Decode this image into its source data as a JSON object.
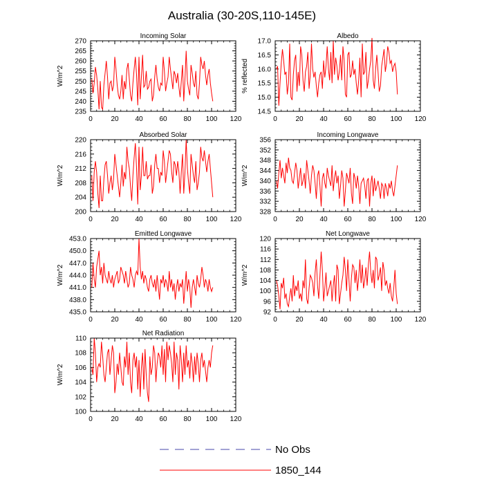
{
  "title": "Australia (30-20S,110-145E)",
  "legend": [
    {
      "label": "No Obs",
      "color": "#4444aa",
      "dashed": true
    },
    {
      "label": "1850_144",
      "color": "#ff0000",
      "dashed": false
    }
  ],
  "chart_data": [
    {
      "type": "line",
      "title": "Incoming Solar",
      "ylabel": "W/m^2",
      "xlim": [
        0,
        120
      ],
      "xticks": [
        0,
        20,
        40,
        60,
        80,
        100,
        120
      ],
      "ylim": [
        235,
        270
      ],
      "yticks": [
        "235",
        "240",
        "245",
        "250",
        "255",
        "260",
        "265",
        "270"
      ],
      "series": [
        {
          "color": "#ff0000",
          "x_start": 1,
          "values": [
            251,
            244,
            249,
            257,
            253,
            246,
            236,
            250,
            237,
            236,
            248,
            254,
            260,
            252,
            241,
            249,
            250,
            245,
            248,
            262,
            256,
            248,
            243,
            241,
            245,
            253,
            241,
            250,
            246,
            256,
            259,
            251,
            243,
            240,
            249,
            256,
            262,
            253,
            238,
            262,
            241,
            252,
            263,
            247,
            248,
            255,
            246,
            247,
            250,
            251,
            240,
            243,
            252,
            258,
            251,
            247,
            245,
            249,
            248,
            262,
            255,
            245,
            249,
            252,
            262,
            256,
            251,
            246,
            255,
            253,
            249,
            254,
            247,
            242,
            250,
            258,
            240,
            251,
            265,
            250,
            246,
            243,
            258,
            254,
            249,
            247,
            255,
            243,
            241,
            249,
            262,
            258,
            256,
            260,
            253,
            248,
            253,
            256,
            249,
            244,
            240
          ]
        }
      ]
    },
    {
      "type": "line",
      "title": "Albedo",
      "ylabel": "% reflected",
      "xlim": [
        0,
        120
      ],
      "xticks": [
        0,
        20,
        40,
        60,
        80,
        100,
        120
      ],
      "ylim": [
        14.5,
        17.0
      ],
      "yticks": [
        "14.5",
        "15.0",
        "15.5",
        "16.0",
        "16.5",
        "17.0"
      ],
      "series": [
        {
          "color": "#ff0000",
          "x_start": 1,
          "values": [
            16.0,
            16.1,
            14.7,
            15.5,
            16.2,
            16.7,
            16.3,
            15.8,
            15.9,
            15.1,
            15.5,
            16.9,
            15.0,
            14.9,
            15.8,
            16.3,
            16.5,
            15.2,
            15.9,
            15.4,
            16.8,
            16.5,
            15.6,
            15.2,
            15.9,
            16.1,
            16.6,
            15.3,
            15.8,
            16.9,
            16.0,
            15.7,
            15.9,
            15.4,
            15.0,
            15.5,
            15.8,
            15.9,
            15.3,
            16.3,
            15.7,
            16.1,
            16.8,
            16.0,
            15.6,
            16.6,
            15.5,
            17.0,
            15.8,
            16.4,
            16.1,
            15.6,
            15.9,
            16.5,
            15.6,
            16.8,
            16.3,
            15.1,
            15.0,
            16.5,
            16.6,
            15.7,
            15.8,
            16.3,
            15.8,
            16.0,
            15.5,
            15.1,
            15.6,
            16.4,
            15.0,
            16.9,
            15.8,
            15.9,
            16.6,
            15.3,
            15.6,
            16.0,
            16.3,
            17.1,
            15.6,
            15.3,
            16.0,
            16.5,
            15.9,
            15.2,
            15.4,
            16.1,
            16.4,
            16.7,
            15.9,
            16.2,
            16.8,
            16.6,
            16.2,
            16.3,
            15.9,
            16.1,
            16.2,
            15.9,
            15.1
          ]
        }
      ]
    },
    {
      "type": "line",
      "title": "Absorbed Solar",
      "ylabel": "W/m^2",
      "xlim": [
        0,
        120
      ],
      "xticks": [
        0,
        20,
        40,
        60,
        80,
        100,
        120
      ],
      "ylim": [
        200,
        220
      ],
      "yticks": [
        "200",
        "204",
        "208",
        "212",
        "216",
        "220"
      ],
      "series": [
        {
          "color": "#ff0000",
          "x_start": 1,
          "values": [
            210,
            203,
            211,
            214,
            211,
            205,
            201,
            210,
            203,
            203,
            209,
            213,
            214,
            210,
            205,
            208,
            210,
            206,
            209,
            216,
            213,
            210,
            207,
            204,
            208,
            213,
            207,
            211,
            209,
            218,
            214,
            212,
            207,
            203,
            210,
            215,
            219,
            212,
            202,
            218,
            206,
            210,
            218,
            210,
            210,
            214,
            209,
            210,
            210,
            213,
            205,
            207,
            213,
            216,
            212,
            212,
            208,
            211,
            210,
            217,
            214,
            208,
            211,
            214,
            217,
            216,
            211,
            208,
            214,
            213,
            210,
            214,
            211,
            205,
            211,
            216,
            205,
            211,
            220,
            212,
            208,
            205,
            216,
            213,
            210,
            208,
            214,
            206,
            208,
            211,
            218,
            215,
            214,
            217,
            214,
            211,
            214,
            216,
            212,
            208,
            204
          ]
        }
      ]
    },
    {
      "type": "line",
      "title": "Incoming Longwave",
      "ylabel": "W/m^2",
      "xlim": [
        0,
        120
      ],
      "xticks": [
        0,
        20,
        40,
        60,
        80,
        100,
        120
      ],
      "ylim": [
        328,
        356
      ],
      "yticks": [
        "328",
        "332",
        "336",
        "340",
        "344",
        "348",
        "352",
        "356"
      ],
      "series": [
        {
          "color": "#ff0000",
          "x_start": 1,
          "values": [
            340,
            337,
            343,
            348,
            341,
            345,
            342,
            339,
            347,
            343,
            349,
            345,
            344,
            340,
            339,
            343,
            347,
            344,
            337,
            341,
            345,
            338,
            340,
            343,
            337,
            348,
            344,
            340,
            335,
            342,
            346,
            344,
            339,
            333,
            342,
            344,
            338,
            330,
            341,
            343,
            339,
            337,
            345,
            342,
            340,
            338,
            346,
            336,
            341,
            344,
            339,
            342,
            333,
            338,
            344,
            341,
            330,
            336,
            343,
            341,
            339,
            345,
            335,
            331,
            343,
            341,
            337,
            342,
            338,
            331,
            339,
            340,
            341,
            338,
            333,
            340,
            341,
            330,
            339,
            342,
            334,
            341,
            336,
            338,
            340,
            337,
            333,
            339,
            338,
            333,
            339,
            337,
            334,
            339,
            337,
            340,
            336,
            334,
            338,
            342,
            346
          ]
        }
      ]
    },
    {
      "type": "line",
      "title": "Emitted Longwave",
      "ylabel": "W/m^2",
      "xlim": [
        0,
        120
      ],
      "xticks": [
        0,
        20,
        40,
        60,
        80,
        100,
        120
      ],
      "ylim": [
        435.0,
        453.0
      ],
      "yticks": [
        "435.0",
        "438.0",
        "441.0",
        "444.0",
        "447.0",
        "450.0",
        "453.0"
      ],
      "series": [
        {
          "color": "#ff0000",
          "x_start": 1,
          "values": [
            441.0,
            447.0,
            443.0,
            441.0,
            446.0,
            448.0,
            450.0,
            444.0,
            446.0,
            442.0,
            447.0,
            444.0,
            443.0,
            442.0,
            445.0,
            443.0,
            442.0,
            444.0,
            441.0,
            443.0,
            444.0,
            445.0,
            442.0,
            443.0,
            446.0,
            445.0,
            444.0,
            442.0,
            445.0,
            443.0,
            441.0,
            442.0,
            446.0,
            444.0,
            443.0,
            441.0,
            444.0,
            445.0,
            444.0,
            453.0,
            446.0,
            443.0,
            445.0,
            442.0,
            444.0,
            443.0,
            441.0,
            440.0,
            443.0,
            444.0,
            442.0,
            441.0,
            443.0,
            440.0,
            444.0,
            441.0,
            438.0,
            443.0,
            442.0,
            444.0,
            441.0,
            443.0,
            442.0,
            440.0,
            445.0,
            441.0,
            443.0,
            440.0,
            442.0,
            438.0,
            441.0,
            443.0,
            440.0,
            442.0,
            441.0,
            443.0,
            437.0,
            441.0,
            445.0,
            440.0,
            443.0,
            441.0,
            436.0,
            441.0,
            443.0,
            441.0,
            439.0,
            444.0,
            442.0,
            441.0,
            443.0,
            446.0,
            444.0,
            441.0,
            443.0,
            442.0,
            440.0,
            443.0,
            441.0,
            440.0,
            441.0
          ]
        }
      ]
    },
    {
      "type": "line",
      "title": "Net Longwave",
      "ylabel": "W/m^2",
      "xlim": [
        0,
        120
      ],
      "xticks": [
        0,
        20,
        40,
        60,
        80,
        100,
        120
      ],
      "ylim": [
        92,
        120
      ],
      "yticks": [
        "92",
        "96",
        "100",
        "104",
        "108",
        "112",
        "116",
        "120"
      ],
      "series": [
        {
          "color": "#ff0000",
          "x_start": 1,
          "values": [
            104,
            102,
            98,
            93,
            103,
            101,
            105,
            97,
            99,
            95,
            94,
            98,
            101,
            96,
            106,
            98,
            102,
            100,
            104,
            97,
            99,
            96,
            104,
            101,
            112,
            97,
            95,
            101,
            106,
            105,
            103,
            98,
            107,
            112,
            102,
            97,
            106,
            115,
            108,
            96,
            101,
            107,
            98,
            100,
            102,
            104,
            96,
            102,
            106,
            96,
            110,
            108,
            95,
            99,
            103,
            106,
            113,
            108,
            100,
            112,
            104,
            96,
            105,
            110,
            109,
            103,
            108,
            100,
            105,
            112,
            103,
            110,
            101,
            104,
            109,
            102,
            110,
            115,
            107,
            103,
            108,
            101,
            113,
            112,
            104,
            106,
            109,
            100,
            111,
            108,
            102,
            104,
            101,
            99,
            103,
            98,
            96,
            101,
            108,
            99,
            95
          ]
        }
      ]
    },
    {
      "type": "line",
      "title": "Net Radiation",
      "ylabel": "W/m^2",
      "xlim": [
        0,
        120
      ],
      "xticks": [
        0,
        20,
        40,
        60,
        80,
        100,
        120
      ],
      "ylim": [
        100,
        110
      ],
      "yticks": [
        "100",
        "102",
        "104",
        "106",
        "108",
        "110"
      ],
      "series": [
        {
          "color": "#ff0000",
          "x_start": 1,
          "values": [
            106.0,
            105.0,
            110.0,
            108.0,
            104.0,
            106.0,
            106.5,
            106.0,
            109.5,
            107.5,
            105.0,
            104.0,
            106.0,
            108.0,
            108.5,
            105.0,
            107.0,
            109.0,
            108.0,
            102.5,
            104.0,
            106.5,
            105.0,
            108.0,
            106.0,
            104.0,
            103.5,
            107.5,
            106.0,
            109.5,
            105.0,
            108.0,
            104.0,
            102.5,
            107.0,
            108.0,
            106.0,
            107.5,
            103.0,
            107.0,
            102.0,
            106.0,
            108.0,
            103.0,
            108.5,
            105.0,
            102.5,
            101.3,
            107.5,
            105.0,
            106.0,
            109.0,
            108.0,
            104.0,
            106.5,
            108.0,
            107.5,
            106.0,
            109.0,
            105.0,
            108.5,
            104.0,
            109.5,
            107.0,
            109.0,
            108.0,
            106.5,
            104.0,
            109.5,
            105.0,
            108.0,
            107.0,
            103.0,
            109.0,
            107.0,
            104.0,
            108.0,
            105.0,
            109.0,
            106.0,
            107.0,
            104.5,
            108.0,
            106.5,
            104.0,
            107.5,
            105.0,
            108.0,
            106.5,
            104.0,
            107.0,
            108.0,
            106.0,
            107.0,
            105.5,
            104.0,
            106.0,
            107.0,
            106.0,
            108.0,
            109.0
          ]
        }
      ]
    }
  ]
}
